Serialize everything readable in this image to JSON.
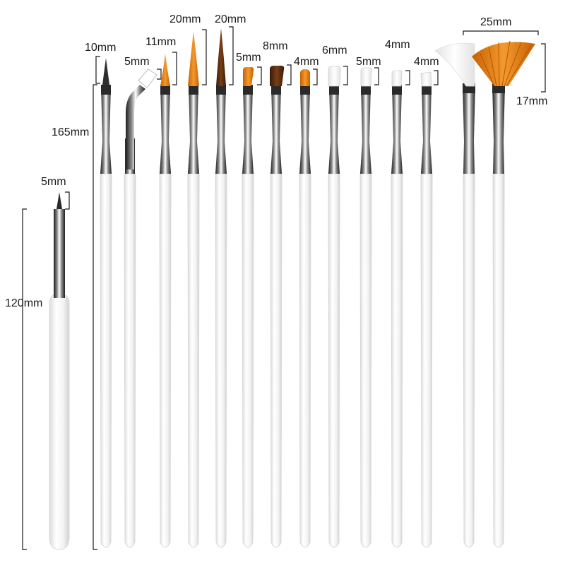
{
  "colors": {
    "handle": "#f2f2f2",
    "handle_edge": "#d6d6d6",
    "ferrule": "#9a9a9a",
    "ferrule_dark": "#2a2a2a",
    "bristle_orange": "#e07a10",
    "bristle_brown": "#5a2e12",
    "bristle_white": "#f4f4f4",
    "dotting_tip": "#3a3a3a",
    "bracket": "#1a1a1a"
  },
  "labels": {
    "dotting_total": "120mm",
    "dotting_tip": "5mm",
    "brush_total": "165mm",
    "b1": "10mm",
    "b2": "5mm",
    "b3": "11mm",
    "b4": "20mm",
    "b5": "20mm",
    "b6": "5mm",
    "b7": "8mm",
    "b8": "4mm",
    "b9": "6mm",
    "b10": "5mm",
    "b11": "4mm",
    "b12": "4mm",
    "fan_width": "25mm",
    "fan_height": "17mm"
  },
  "brushes": [
    {
      "name": "dotting-tool",
      "tip": "dot",
      "color": "dotting_tip"
    },
    {
      "name": "fine-liner",
      "tip": "needle",
      "color": "dotting_tip"
    },
    {
      "name": "angled-brush",
      "tip": "angled",
      "color": "bristle_white"
    },
    {
      "name": "liner-11mm",
      "tip": "pointed",
      "color": "bristle_orange"
    },
    {
      "name": "striper-20mm",
      "tip": "long-pointed",
      "color": "bristle_orange"
    },
    {
      "name": "striper-20mm-brown",
      "tip": "long-pointed",
      "color": "bristle_brown"
    },
    {
      "name": "flat-5mm",
      "tip": "flat",
      "color": "bristle_orange"
    },
    {
      "name": "flat-8mm",
      "tip": "flat",
      "color": "bristle_brown"
    },
    {
      "name": "flat-4mm",
      "tip": "oval",
      "color": "bristle_orange"
    },
    {
      "name": "flat-6mm-white",
      "tip": "flat",
      "color": "bristle_white"
    },
    {
      "name": "flat-5mm-white",
      "tip": "flat",
      "color": "bristle_white"
    },
    {
      "name": "flat-4mm-white",
      "tip": "flat",
      "color": "bristle_white"
    },
    {
      "name": "angle-4mm-white",
      "tip": "angled-flat",
      "color": "bristle_white"
    },
    {
      "name": "fan-white",
      "tip": "fan",
      "color": "bristle_white"
    },
    {
      "name": "fan-orange",
      "tip": "fan",
      "color": "bristle_orange"
    }
  ]
}
